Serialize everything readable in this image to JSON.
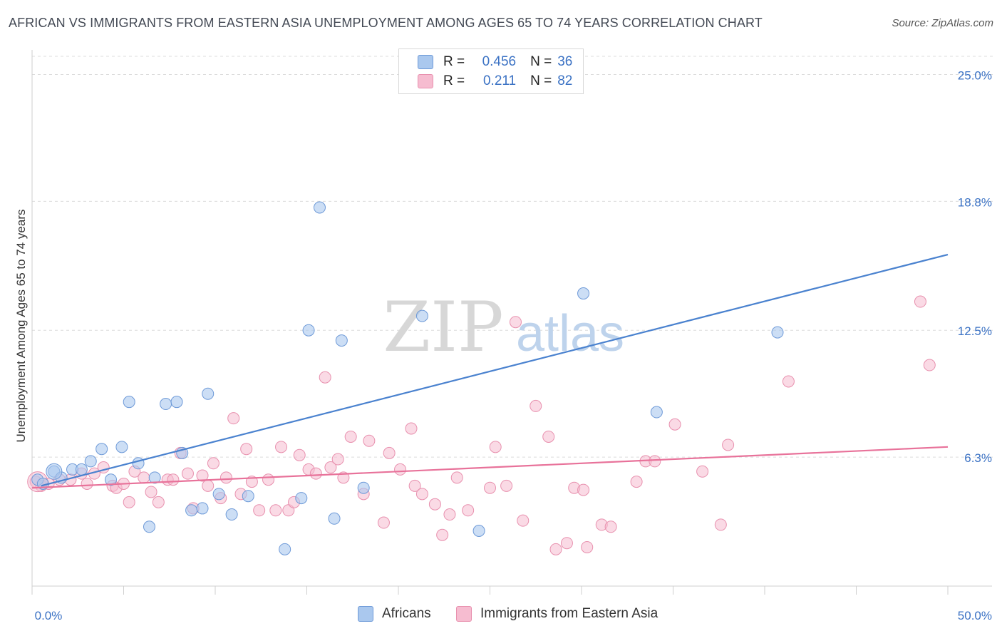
{
  "title": "AFRICAN VS IMMIGRANTS FROM EASTERN ASIA UNEMPLOYMENT AMONG AGES 65 TO 74 YEARS CORRELATION CHART",
  "source": "Source: ZipAtlas.com",
  "watermark": {
    "zip": "ZIP",
    "atlas": "atlas"
  },
  "legend": {
    "r_label": "R =",
    "n_label": "N =",
    "rows": [
      {
        "r": "0.456",
        "n": "36",
        "color": "#aac8ee"
      },
      {
        "r": "0.211",
        "n": "82",
        "color": "#f6bcd0"
      }
    ]
  },
  "bottom_legend": [
    "Africans",
    "Immigrants from Eastern Asia"
  ],
  "chart_data": {
    "type": "scatter",
    "title": "AFRICAN VS IMMIGRANTS FROM EASTERN ASIA UNEMPLOYMENT AMONG AGES 65 TO 74 YEARS CORRELATION CHART",
    "xlabel": "",
    "ylabel": "Unemployment Among Ages 65 to 74 years",
    "xlim": [
      0,
      50
    ],
    "ylim": [
      0,
      26.2
    ],
    "x_tick_labels": [
      "0.0%",
      "50.0%"
    ],
    "y_ticks": [
      6.3,
      12.5,
      18.8,
      25.0
    ],
    "y_tick_labels": [
      "6.3%",
      "12.5%",
      "18.8%",
      "25.0%"
    ],
    "grid": true,
    "legend_position": "top-center",
    "colors": {
      "africans": "#4a82cf",
      "asia": "#e8729a",
      "africans_fill": "#aac8ee",
      "asia_fill": "#f6bcd0"
    },
    "series": [
      {
        "name": "Africans",
        "r": 0.456,
        "n": 36,
        "trend": {
          "x": [
            0.5,
            50
          ],
          "y": [
            4.9,
            16.2
          ]
        },
        "points": [
          [
            0.3,
            5.2
          ],
          [
            0.6,
            5.0
          ],
          [
            1.2,
            5.6
          ],
          [
            1.6,
            5.3
          ],
          [
            2.2,
            5.7
          ],
          [
            2.7,
            5.7
          ],
          [
            3.2,
            6.1
          ],
          [
            3.8,
            6.7
          ],
          [
            4.3,
            5.2
          ],
          [
            4.9,
            6.8
          ],
          [
            5.3,
            9.0
          ],
          [
            5.8,
            6.0
          ],
          [
            6.4,
            2.9
          ],
          [
            6.7,
            5.3
          ],
          [
            7.3,
            8.9
          ],
          [
            7.9,
            9.0
          ],
          [
            8.2,
            6.5
          ],
          [
            8.7,
            3.7
          ],
          [
            9.3,
            3.8
          ],
          [
            9.6,
            9.4
          ],
          [
            10.2,
            4.5
          ],
          [
            10.9,
            3.5
          ],
          [
            11.8,
            4.4
          ],
          [
            13.8,
            1.8
          ],
          [
            14.7,
            4.3
          ],
          [
            15.1,
            12.5
          ],
          [
            15.7,
            18.5
          ],
          [
            16.5,
            3.3
          ],
          [
            16.9,
            12.0
          ],
          [
            18.1,
            4.8
          ],
          [
            21.3,
            13.2
          ],
          [
            23.7,
            25.0
          ],
          [
            24.4,
            2.7
          ],
          [
            30.1,
            14.3
          ],
          [
            34.1,
            8.5
          ],
          [
            40.7,
            12.4
          ]
        ]
      },
      {
        "name": "Immigrants from Eastern Asia",
        "r": 0.211,
        "n": 82,
        "trend": {
          "x": [
            0,
            50
          ],
          "y": [
            4.8,
            6.8
          ]
        },
        "points": [
          [
            0.2,
            5.1
          ],
          [
            0.5,
            4.9
          ],
          [
            0.9,
            5.0
          ],
          [
            1.5,
            5.2
          ],
          [
            2.1,
            5.2
          ],
          [
            2.7,
            5.5
          ],
          [
            3.0,
            5.0
          ],
          [
            3.4,
            5.5
          ],
          [
            3.9,
            5.8
          ],
          [
            4.4,
            4.9
          ],
          [
            4.6,
            4.8
          ],
          [
            5.0,
            5.0
          ],
          [
            5.3,
            4.1
          ],
          [
            5.6,
            5.6
          ],
          [
            6.1,
            5.3
          ],
          [
            6.5,
            4.6
          ],
          [
            6.9,
            4.1
          ],
          [
            7.4,
            5.2
          ],
          [
            7.7,
            5.2
          ],
          [
            8.1,
            6.5
          ],
          [
            8.5,
            5.5
          ],
          [
            8.8,
            3.8
          ],
          [
            9.3,
            5.4
          ],
          [
            9.6,
            4.9
          ],
          [
            9.9,
            6.0
          ],
          [
            10.3,
            4.3
          ],
          [
            10.6,
            5.3
          ],
          [
            11.0,
            8.2
          ],
          [
            11.4,
            4.5
          ],
          [
            11.7,
            6.7
          ],
          [
            12.0,
            5.1
          ],
          [
            12.4,
            3.7
          ],
          [
            12.9,
            5.2
          ],
          [
            13.3,
            3.7
          ],
          [
            13.6,
            6.8
          ],
          [
            14.0,
            3.7
          ],
          [
            14.3,
            4.1
          ],
          [
            14.6,
            6.4
          ],
          [
            15.1,
            5.7
          ],
          [
            15.5,
            5.5
          ],
          [
            16.0,
            10.2
          ],
          [
            16.3,
            5.8
          ],
          [
            16.7,
            6.2
          ],
          [
            17.0,
            5.3
          ],
          [
            17.4,
            7.3
          ],
          [
            18.1,
            4.5
          ],
          [
            18.4,
            7.1
          ],
          [
            19.2,
            3.1
          ],
          [
            19.5,
            6.5
          ],
          [
            20.1,
            5.7
          ],
          [
            20.7,
            7.7
          ],
          [
            20.9,
            4.9
          ],
          [
            21.3,
            4.5
          ],
          [
            22.0,
            4.0
          ],
          [
            22.4,
            2.5
          ],
          [
            22.8,
            3.5
          ],
          [
            23.2,
            5.3
          ],
          [
            23.8,
            3.7
          ],
          [
            25.0,
            4.8
          ],
          [
            25.3,
            6.8
          ],
          [
            25.9,
            4.9
          ],
          [
            26.4,
            12.9
          ],
          [
            26.8,
            3.2
          ],
          [
            27.5,
            8.8
          ],
          [
            28.2,
            7.3
          ],
          [
            28.6,
            1.8
          ],
          [
            29.2,
            2.1
          ],
          [
            29.6,
            4.8
          ],
          [
            30.1,
            4.7
          ],
          [
            30.3,
            1.9
          ],
          [
            31.1,
            3.0
          ],
          [
            31.6,
            2.9
          ],
          [
            33.0,
            5.1
          ],
          [
            33.5,
            6.1
          ],
          [
            34.0,
            6.1
          ],
          [
            35.1,
            7.9
          ],
          [
            36.6,
            5.6
          ],
          [
            37.6,
            3.0
          ],
          [
            38.0,
            6.9
          ],
          [
            41.3,
            10.0
          ],
          [
            48.5,
            13.9
          ],
          [
            49.0,
            10.8
          ]
        ]
      }
    ]
  }
}
